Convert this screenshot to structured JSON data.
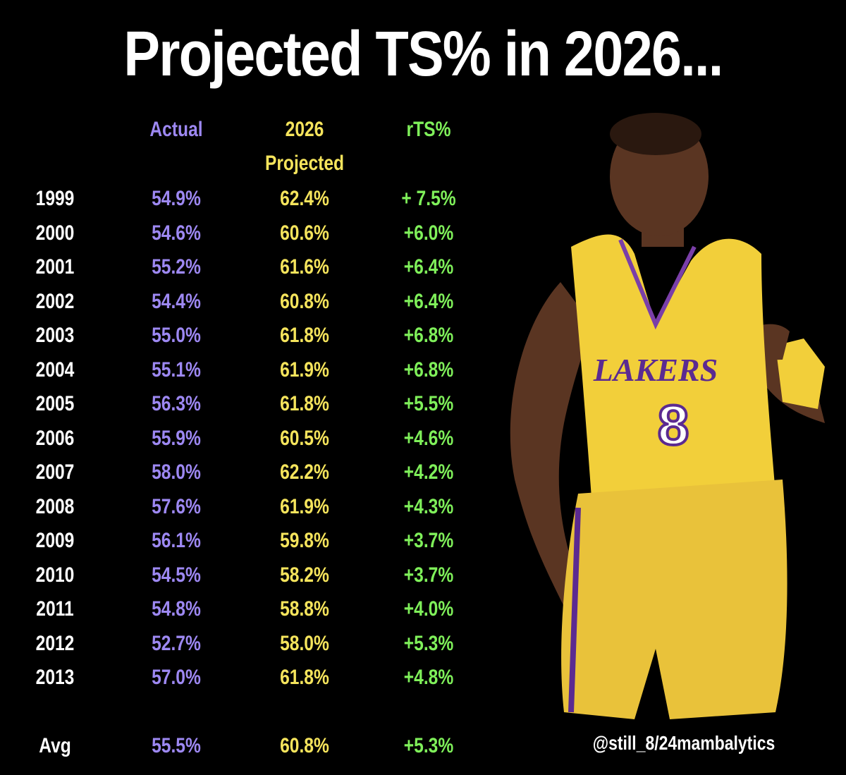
{
  "title": "Projected TS% in 2026...",
  "headers": {
    "actual": "Actual",
    "projected_line1": "2026",
    "projected_line2": "Projected",
    "rts": "rTS%"
  },
  "rows": [
    {
      "year": "1999",
      "actual": "54.9%",
      "projected": "62.4%",
      "rts": "+ 7.5%"
    },
    {
      "year": "2000",
      "actual": "54.6%",
      "projected": "60.6%",
      "rts": "+6.0%"
    },
    {
      "year": "2001",
      "actual": "55.2%",
      "projected": "61.6%",
      "rts": "+6.4%"
    },
    {
      "year": "2002",
      "actual": "54.4%",
      "projected": "60.8%",
      "rts": "+6.4%"
    },
    {
      "year": "2003",
      "actual": "55.0%",
      "projected": "61.8%",
      "rts": "+6.8%"
    },
    {
      "year": "2004",
      "actual": "55.1%",
      "projected": "61.9%",
      "rts": "+6.8%"
    },
    {
      "year": "2005",
      "actual": "56.3%",
      "projected": "61.8%",
      "rts": "+5.5%"
    },
    {
      "year": "2006",
      "actual": "55.9%",
      "projected": "60.5%",
      "rts": "+4.6%"
    },
    {
      "year": "2007",
      "actual": "58.0%",
      "projected": "62.2%",
      "rts": "+4.2%"
    },
    {
      "year": "2008",
      "actual": "57.6%",
      "projected": "61.9%",
      "rts": "+4.3%"
    },
    {
      "year": "2009",
      "actual": "56.1%",
      "projected": "59.8%",
      "rts": "+3.7%"
    },
    {
      "year": "2010",
      "actual": "54.5%",
      "projected": "58.2%",
      "rts": "+3.7%"
    },
    {
      "year": "2011",
      "actual": "54.8%",
      "projected": "58.8%",
      "rts": "+4.0%"
    },
    {
      "year": "2012",
      "actual": "52.7%",
      "projected": "58.0%",
      "rts": "+5.3%"
    },
    {
      "year": "2013",
      "actual": "57.0%",
      "projected": "61.8%",
      "rts": "+4.8%"
    }
  ],
  "average": {
    "year": "Avg",
    "actual": "55.5%",
    "projected": "60.8%",
    "rts": "+5.3%"
  },
  "credit": "@still_8/24mambalytics",
  "jersey": {
    "team": "LAKERS",
    "number": "8"
  },
  "colors": {
    "background": "#000000",
    "actual": "#9d88f2",
    "projected": "#f5e45c",
    "rts": "#7ff05a",
    "jersey": "#f2cf3a"
  }
}
